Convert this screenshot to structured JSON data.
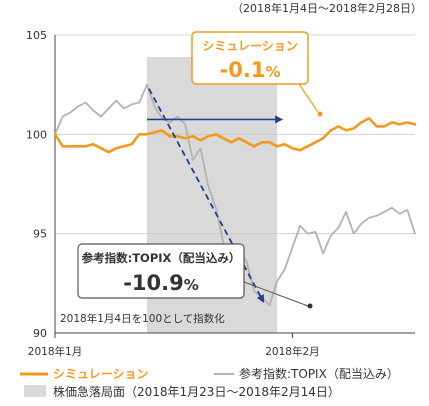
{
  "chart_data": {
    "type": "line",
    "period_note": "（2018年1月4日～2018年2月28日）",
    "ylim": [
      90,
      105
    ],
    "yticks": [
      90,
      95,
      100,
      105
    ],
    "xticks": [
      "2018年1月",
      "2018年2月"
    ],
    "base_note": "2018年1月4日を100として指数化",
    "series": [
      {
        "name": "シミュレーション",
        "color": "#f39a1e",
        "values": [
          100.0,
          99.4,
          99.4,
          99.4,
          99.4,
          99.5,
          99.3,
          99.1,
          99.3,
          99.4,
          99.5,
          100.0,
          100.0,
          100.1,
          100.2,
          99.9,
          99.9,
          99.8,
          99.9,
          99.7,
          99.9,
          100.0,
          99.8,
          99.6,
          99.8,
          99.6,
          99.4,
          99.6,
          99.6,
          99.4,
          99.5,
          99.3,
          99.2,
          99.4,
          99.6,
          99.8,
          100.2,
          100.4,
          100.2,
          100.3,
          100.6,
          100.8,
          100.4,
          100.4,
          100.6,
          100.5,
          100.6,
          100.5
        ]
      },
      {
        "name": "参考指数:TOPIX（配当込み）",
        "color": "#b3b3b3",
        "values": [
          100.0,
          100.9,
          101.1,
          101.4,
          101.6,
          101.2,
          100.9,
          101.3,
          101.7,
          101.3,
          101.5,
          101.6,
          102.5,
          101.4,
          100.8,
          100.6,
          100.9,
          100.5,
          98.7,
          99.3,
          97.4,
          96.3,
          94.5,
          93.9,
          94.2,
          93.6,
          92.1,
          91.8,
          91.4,
          92.6,
          93.2,
          94.3,
          95.4,
          95.0,
          95.1,
          94.0,
          94.9,
          95.3,
          96.1,
          95.0,
          95.5,
          95.8,
          95.9,
          96.1,
          96.3,
          96.0,
          96.2,
          95.0
        ]
      }
    ],
    "shaded_period": {
      "label": "株価急落局面（2018年1月23日～2018年2月14日）",
      "start_index": 12,
      "end_index": 29,
      "color": "#d9d9d9"
    },
    "annotations": [
      {
        "name": "シミュレーション",
        "value": "-0.1",
        "unit": "%",
        "color": "#f39a1e"
      },
      {
        "name": "参考指数:TOPIX（配当込み）",
        "value": "-10.9",
        "unit": "%",
        "color": "#333333"
      }
    ],
    "legend": {
      "placement": "bottom",
      "items": [
        "シミュレーション",
        "参考指数:TOPIX（配当込み）",
        "株価急落局面（2018年1月23日～2018年2月14日）"
      ]
    },
    "arrow_colors": {
      "flat": "#1f3f8f",
      "drop": "#1f3f8f"
    }
  }
}
